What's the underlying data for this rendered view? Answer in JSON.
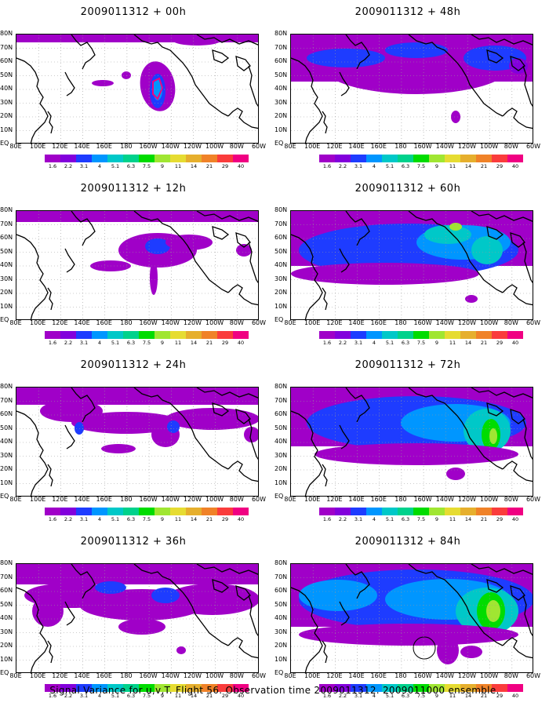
{
  "caption": "Signal Variance for u,v,T. Flight 56. Observation time 2009011312. 2009011000 ensemble.",
  "panels": [
    {
      "title": "2009011312 + 00h",
      "level": 0
    },
    {
      "title": "2009011312 + 12h",
      "level": 1
    },
    {
      "title": "2009011312 + 24h",
      "level": 2
    },
    {
      "title": "2009011312 + 36h",
      "level": 3
    },
    {
      "title": "2009011312 + 48h",
      "level": 4
    },
    {
      "title": "2009011312 + 60h",
      "level": 5
    },
    {
      "title": "2009011312 + 72h",
      "level": 6
    },
    {
      "title": "2009011312 + 84h",
      "level": 7
    }
  ],
  "lat_labels": [
    "80N",
    "70N",
    "60N",
    "50N",
    "40N",
    "30N",
    "20N",
    "10N",
    "EQ"
  ],
  "lon_labels": [
    "80E",
    "100E",
    "120E",
    "140E",
    "160E",
    "180",
    "160W",
    "140W",
    "120W",
    "100W",
    "80W",
    "60W"
  ],
  "colorbar": {
    "labels": [
      "1.6",
      "2.2",
      "3.1",
      "4",
      "5.1",
      "6.3",
      "7.5",
      "9",
      "11",
      "14",
      "21",
      "29",
      "40"
    ],
    "colors": [
      "#a000c8",
      "#8200dc",
      "#1e3cff",
      "#0096ff",
      "#00c8c8",
      "#00d28c",
      "#00dc00",
      "#a0e632",
      "#e6dc32",
      "#e6af2d",
      "#f08228",
      "#fa3c3c",
      "#f00082"
    ]
  }
}
